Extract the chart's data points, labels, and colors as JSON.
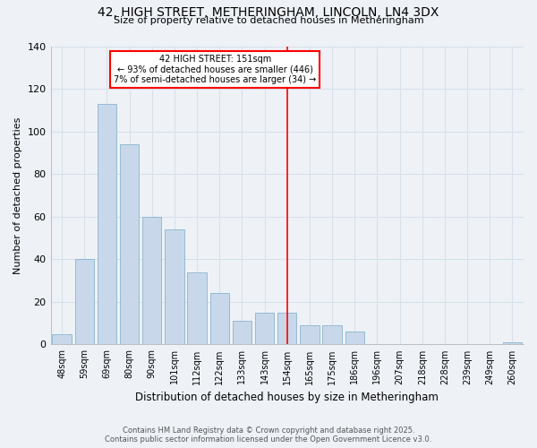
{
  "title": "42, HIGH STREET, METHERINGHAM, LINCOLN, LN4 3DX",
  "subtitle": "Size of property relative to detached houses in Metheringham",
  "xlabel": "Distribution of detached houses by size in Metheringham",
  "ylabel": "Number of detached properties",
  "categories": [
    "48sqm",
    "59sqm",
    "69sqm",
    "80sqm",
    "90sqm",
    "101sqm",
    "112sqm",
    "122sqm",
    "133sqm",
    "143sqm",
    "154sqm",
    "165sqm",
    "175sqm",
    "186sqm",
    "196sqm",
    "207sqm",
    "218sqm",
    "228sqm",
    "239sqm",
    "249sqm",
    "260sqm"
  ],
  "values": [
    5,
    40,
    113,
    94,
    60,
    54,
    34,
    24,
    11,
    15,
    15,
    9,
    9,
    6,
    0,
    0,
    0,
    0,
    0,
    0,
    1
  ],
  "bar_color": "#c8d8ea",
  "bar_edge_color": "#7aaac8",
  "background_color": "#eef2f7",
  "grid_color": "#d8e0ea",
  "red_line_index": 10,
  "annotation_title": "42 HIGH STREET: 151sqm",
  "annotation_line1": "← 93% of detached houses are smaller (446)",
  "annotation_line2": "7% of semi-detached houses are larger (34) →",
  "footer_line1": "Contains HM Land Registry data © Crown copyright and database right 2025.",
  "footer_line2": "Contains public sector information licensed under the Open Government Licence v3.0.",
  "ylim": [
    0,
    140
  ],
  "yticks": [
    0,
    20,
    40,
    60,
    80,
    100,
    120,
    140
  ]
}
